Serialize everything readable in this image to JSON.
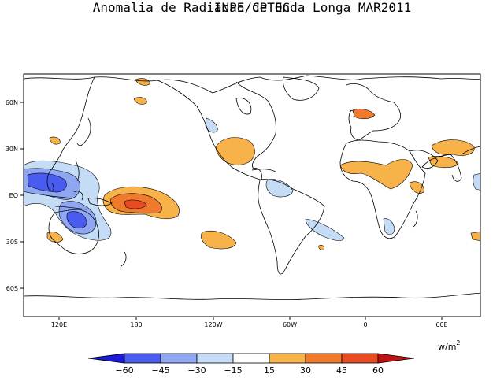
{
  "header": {
    "title": "INPE/CPTEC",
    "subtitle": "Anomalia de Radiacao de Onda Longa MAR2011"
  },
  "map": {
    "lat_ticks": [
      "60N",
      "30N",
      "EQ",
      "30S",
      "60S"
    ],
    "lon_ticks": [
      "120E",
      "180",
      "120W",
      "60W",
      "0",
      "60E"
    ]
  },
  "colorbar": {
    "units": "w/m",
    "units_exp": "2",
    "labels": [
      "−60",
      "−45",
      "−30",
      "−15",
      "15",
      "30",
      "45",
      "60"
    ],
    "colors": [
      "#1a1ad8",
      "#4a5cf0",
      "#8fa6f2",
      "#c4dcf6",
      "#ffffff",
      "#f8b24a",
      "#f07a2c",
      "#e84a24",
      "#c01414"
    ]
  }
}
